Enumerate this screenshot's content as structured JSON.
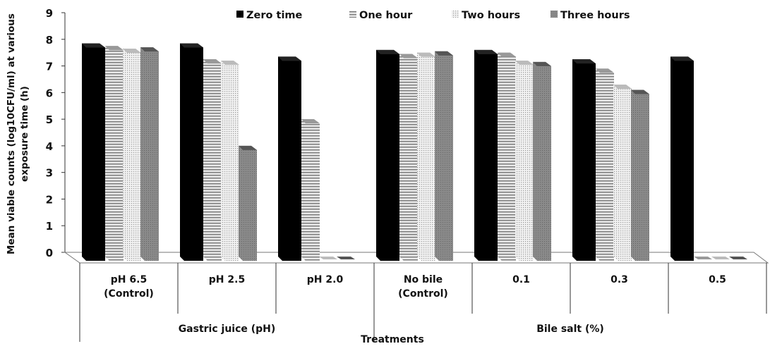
{
  "chart_data": {
    "type": "bar",
    "title": "",
    "ylabel": "Mean viable counts (log10CFU/ml) at various exposure time (h)",
    "ylabel_lines": [
      "Mean viable counts (log10CFU/ml) at various",
      "exposure time (h)"
    ],
    "xlabel": "Treatments",
    "ylim": [
      0,
      9
    ],
    "yticks": [
      "0",
      "1",
      "2",
      "3",
      "4",
      "5",
      "6",
      "7",
      "8",
      "9"
    ],
    "categories": [
      {
        "lines": [
          "pH 6.5",
          "(Control)"
        ]
      },
      {
        "lines": [
          "pH 2.5"
        ]
      },
      {
        "lines": [
          "pH 2.0"
        ]
      },
      {
        "lines": [
          "No bile",
          "(Control)"
        ]
      },
      {
        "lines": [
          "0.1"
        ]
      },
      {
        "lines": [
          "0.3"
        ]
      },
      {
        "lines": [
          "0.5"
        ]
      }
    ],
    "groups": [
      {
        "label": "Gastric juice (pH)",
        "span": 3
      },
      {
        "label": "Bile salt (%)",
        "span": 4
      }
    ],
    "legend_position": "top",
    "series": [
      {
        "name": "Zero time",
        "pattern": "solid",
        "color": "#000000",
        "values": [
          7.85,
          7.85,
          7.35,
          7.6,
          7.6,
          7.25,
          7.35
        ]
      },
      {
        "name": "One hour",
        "pattern": "horizontal-lines",
        "color": "#888888",
        "values": [
          7.75,
          7.25,
          5.0,
          7.45,
          7.5,
          6.9,
          0
        ]
      },
      {
        "name": "Two hours",
        "pattern": "dots",
        "color": "#cccccc",
        "values": [
          7.65,
          7.2,
          0,
          7.5,
          7.2,
          6.3,
          0
        ]
      },
      {
        "name": "Three hours",
        "pattern": "diagonal",
        "color": "#777777",
        "values": [
          7.7,
          4.0,
          0,
          7.55,
          7.15,
          6.1,
          0
        ]
      }
    ]
  }
}
